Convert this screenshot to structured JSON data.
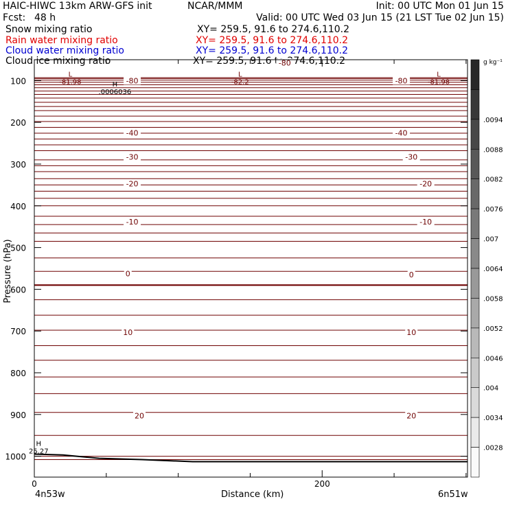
{
  "header": {
    "title": "HAIC-HIWC 13km ARW-GFS init",
    "org": "NCAR/MMM",
    "init": "Init: 00 UTC Mon 01 Jun 15",
    "fcst_label": "Fcst:",
    "fcst_value": "48 h",
    "valid": "Valid: 00 UTC Wed 03 Jun 15 (21 LST Tue 02 Jun 15)",
    "fields": [
      {
        "name": "Snow mixing ratio",
        "xy": "XY= 259.5, 91.6 to 274.6,110.2",
        "color": "#000000"
      },
      {
        "name": "Rain water mixing ratio",
        "xy": "XY= 259.5, 91.6 to 274.6,110.2",
        "color": "#e00000"
      },
      {
        "name": "Cloud water mixing ratio",
        "xy": "XY= 259.5, 91.6 to 274.6,110.2",
        "color": "#0000d0"
      },
      {
        "name": "Cloud ice mixing ratio",
        "xy": "XY= 259.5, 91.6 to 274.6,110.2",
        "color": "#000000"
      }
    ]
  },
  "colorbar": {
    "unit": "g kg⁻¹",
    "labels": [
      ".0094",
      ".0088",
      ".0082",
      ".0076",
      ".007",
      ".0064",
      ".0058",
      ".0052",
      ".0046",
      ".004",
      ".0034",
      ".0028"
    ]
  },
  "chart_data": {
    "type": "line",
    "title": "",
    "xlabel": "Distance (km)",
    "ylabel": "Pressure (hPa)",
    "xlim": [
      0,
      301
    ],
    "ylim": [
      1050,
      50
    ],
    "x_ticks": [
      0,
      200
    ],
    "y_ticks": [
      100,
      200,
      300,
      400,
      500,
      600,
      700,
      800,
      900,
      1000
    ],
    "x_end_labels": {
      "left": "4n53w",
      "right": "6n51w"
    },
    "contour_color": "#6e0000",
    "series": [
      {
        "label": "-80",
        "x": [
          0,
          301
        ],
        "y": [
          93,
          93
        ]
      },
      {
        "label": "-40",
        "x": [
          0,
          301
        ],
        "y": [
          240,
          240
        ]
      },
      {
        "label": "-30",
        "x": [
          0,
          301
        ],
        "y": [
          290,
          290
        ]
      },
      {
        "label": "-20",
        "x": [
          0,
          301
        ],
        "y": [
          350,
          350
        ]
      },
      {
        "label": "-10",
        "x": [
          0,
          301
        ],
        "y": [
          425,
          425
        ]
      },
      {
        "label": "0",
        "x": [
          0,
          301
        ],
        "y": [
          590,
          590
        ]
      },
      {
        "label": "10",
        "x": [
          0,
          301
        ],
        "y": [
          770,
          770
        ]
      },
      {
        "label": "20",
        "x": [
          0,
          301
        ],
        "y": [
          950,
          950
        ]
      }
    ],
    "contour_labels": [
      {
        "text": "-80",
        "x": 68,
        "y": 100
      },
      {
        "text": "-80",
        "x": 174,
        "y": 57
      },
      {
        "text": "-80",
        "x": 255,
        "y": 100
      },
      {
        "text": "-40",
        "x": 68,
        "y": 225
      },
      {
        "text": "-40",
        "x": 255,
        "y": 225
      },
      {
        "text": "-30",
        "x": 68,
        "y": 283
      },
      {
        "text": "-30",
        "x": 262,
        "y": 283
      },
      {
        "text": "-20",
        "x": 68,
        "y": 347
      },
      {
        "text": "-20",
        "x": 272,
        "y": 347
      },
      {
        "text": "-10",
        "x": 68,
        "y": 438
      },
      {
        "text": "-10",
        "x": 272,
        "y": 438
      },
      {
        "text": "0",
        "x": 65,
        "y": 562
      },
      {
        "text": "0",
        "x": 262,
        "y": 565
      },
      {
        "text": "10",
        "x": 65,
        "y": 703
      },
      {
        "text": "10",
        "x": 262,
        "y": 703
      },
      {
        "text": "20",
        "x": 73,
        "y": 903
      },
      {
        "text": "20",
        "x": 262,
        "y": 903
      }
    ],
    "extrema": [
      {
        "symbol": "L",
        "value": "-81.98",
        "x": 25,
        "y": 100
      },
      {
        "symbol": "L",
        "value": "-82.2",
        "x": 143,
        "y": 100
      },
      {
        "symbol": "L",
        "value": "-81.98",
        "x": 281,
        "y": 100
      },
      {
        "symbol": "H",
        "value": ".0006036",
        "x": 56,
        "y": 124
      },
      {
        "symbol": "H",
        "value": "25.27",
        "x": 3,
        "y": 985
      }
    ]
  }
}
